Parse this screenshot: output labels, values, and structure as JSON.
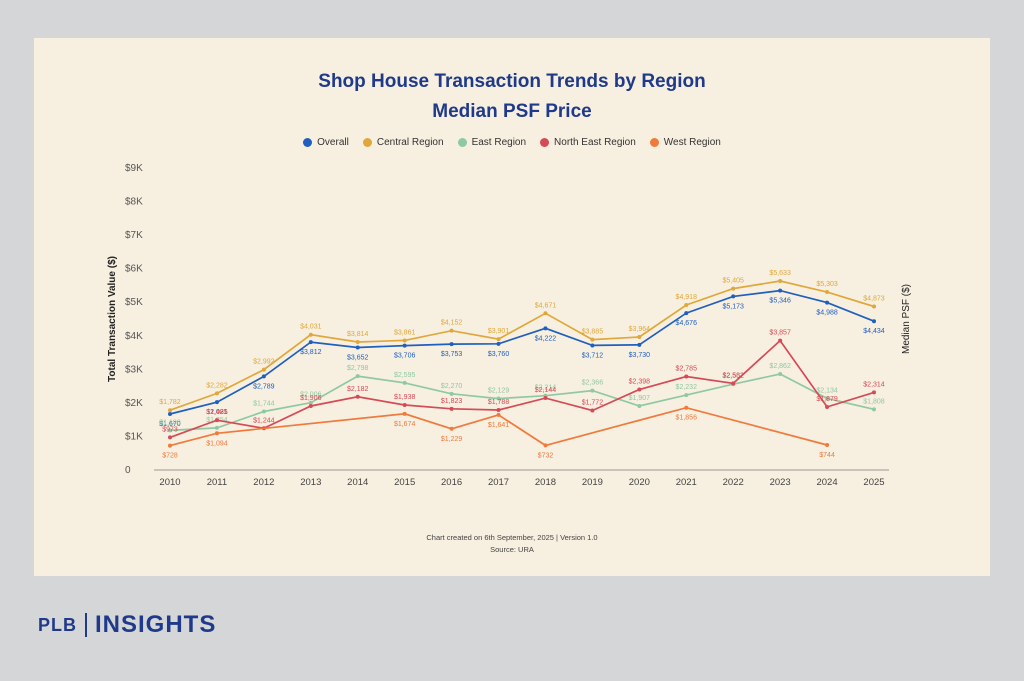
{
  "chart_data": {
    "type": "line",
    "title": "Shop House Transaction Trends by Region",
    "subtitle": "Median PSF Price",
    "ylabel_left": "Total Transaction Value ($)",
    "ylabel_right": "Median PSF ($)",
    "y_ticks": [
      "0",
      "$1K",
      "$2K",
      "$3K",
      "$4K",
      "$5K",
      "$6K",
      "$7K",
      "$8K",
      "$9K"
    ],
    "ylim": [
      0,
      9000
    ],
    "grid": false,
    "legend_position": "top-center",
    "x": [
      "2010",
      "2011",
      "2012",
      "2013",
      "2014",
      "2015",
      "2016",
      "2017",
      "2018",
      "2019",
      "2020",
      "2021",
      "2022",
      "2023",
      "2024",
      "2025"
    ],
    "series": [
      {
        "name": "Overall",
        "color": "#1f5fbf",
        "values": [
          1670,
          2021,
          2789,
          3812,
          3652,
          3706,
          3753,
          3760,
          4222,
          3712,
          3730,
          4676,
          5173,
          5346,
          4988,
          4434
        ],
        "labels": [
          "$1,670",
          "$2,021",
          "$2,789",
          "$3,812",
          "$3,652",
          "$3,706",
          "$3,753",
          "$3,760",
          "$4,222",
          "$3,712",
          "$3,730",
          "$4,676",
          "$5,173",
          "$5,346",
          "$4,988",
          "$4,434"
        ]
      },
      {
        "name": "Central Region",
        "color": "#e0a83a",
        "values": [
          1782,
          2282,
          2992,
          4031,
          3814,
          3861,
          4152,
          3901,
          4671,
          3885,
          3964,
          4918,
          5405,
          5633,
          5303,
          4873
        ],
        "labels": [
          "$1,782",
          "$2,282",
          "$2,992",
          "$4,031",
          "$3,814",
          "$3,861",
          "$4,152",
          "$3,901",
          "$4,671",
          "$3,885",
          "$3,964",
          "$4,918",
          "$5,405",
          "$5,633",
          "$5,303",
          "$4,873"
        ]
      },
      {
        "name": "East Region",
        "color": "#8fc9a3",
        "values": [
          1180,
          1254,
          1744,
          2006,
          2798,
          2595,
          2270,
          2129,
          2214,
          2366,
          1907,
          2232,
          2557,
          2862,
          2134,
          1808
        ],
        "labels": [
          "$1,180",
          "$1,254",
          "$1,744",
          "$2,006",
          "$2,798",
          "$2,595",
          "$2,270",
          "$2,129",
          "$2,214",
          "$2,366",
          "$1,907",
          "$2,232",
          "$2,557",
          "$2,862",
          "$2,134",
          "$1,808"
        ]
      },
      {
        "name": "North East Region",
        "color": "#d64a55",
        "values": [
          973,
          1485,
          1244,
          1906,
          2182,
          1938,
          1823,
          1788,
          2144,
          1772,
          2398,
          2785,
          2582,
          3857,
          1879,
          2314
        ],
        "labels": [
          "$973",
          "$1,485",
          "$1,244",
          "$1,906",
          "$2,182",
          "$1,938",
          "$1,823",
          "$1,788",
          "$2,144",
          "$1,772",
          "$2,398",
          "$2,785",
          "$2,582",
          "$3,857",
          "$1,879",
          "$2,314"
        ]
      },
      {
        "name": "West Region",
        "color": "#f07a3c",
        "values": [
          728,
          1094,
          null,
          null,
          null,
          1674,
          1229,
          1641,
          732,
          null,
          null,
          1856,
          null,
          null,
          744,
          null
        ],
        "labels": [
          "$728",
          "$1,094",
          "",
          "",
          "",
          "$1,674",
          "$1,229",
          "$1,641",
          "$732",
          "",
          "",
          "$1,856",
          "",
          "",
          "$744",
          ""
        ]
      }
    ]
  },
  "footnote": {
    "line1": "Chart created on 6th September, 2025 | Version 1.0",
    "line2": "Source: URA"
  },
  "brand": {
    "left": "PLB",
    "right": "INSIGHTS"
  },
  "colors": {
    "background": "#d4d6d8",
    "card": "#f7efe0",
    "title": "#1f3a8a",
    "axis": "#999999"
  }
}
